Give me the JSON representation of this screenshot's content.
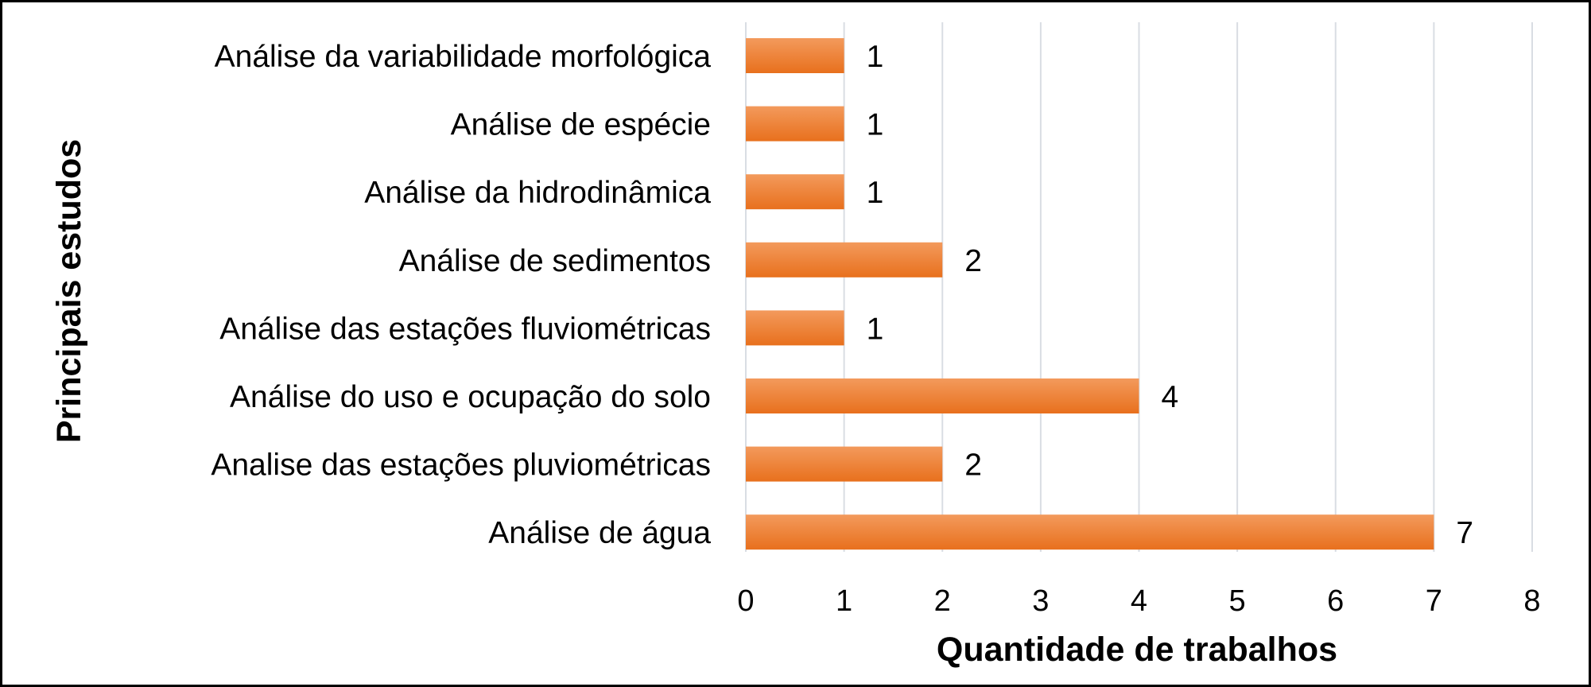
{
  "chart_data": {
    "type": "bar",
    "orientation": "horizontal",
    "categories": [
      "Análise da variabilidade morfológica",
      "Análise de espécie",
      "Análise da hidrodinâmica",
      "Análise de sedimentos",
      "Análise das estações fluviométricas",
      "Análise do uso e ocupação do solo",
      "Analise das estações pluviométricas",
      "Análise de água"
    ],
    "values": [
      1,
      1,
      1,
      2,
      1,
      4,
      2,
      7
    ],
    "xlabel": "Quantidade de trabalhos",
    "ylabel": "Principais estudos",
    "xlim": [
      0,
      8
    ],
    "xticks": [
      0,
      1,
      2,
      3,
      4,
      5,
      6,
      7,
      8
    ],
    "grid": "vertical",
    "data_labels": true,
    "colors": {
      "bar_light": "#f39a5c",
      "bar_dark": "#e8701d",
      "grid": "#d9dde3",
      "text": "#000000",
      "border": "#000000"
    }
  }
}
